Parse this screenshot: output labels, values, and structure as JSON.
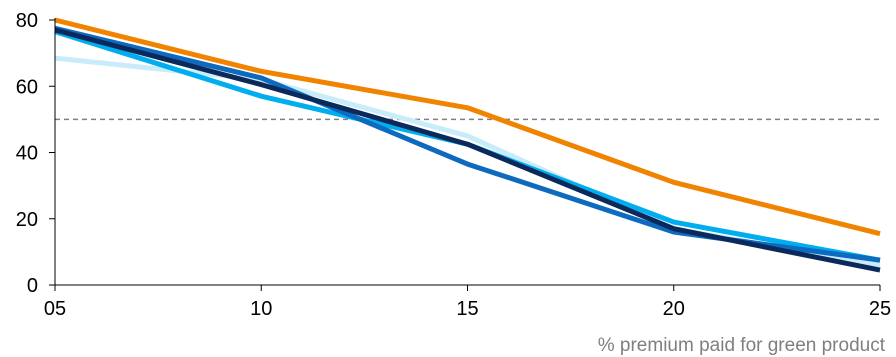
{
  "chart_data": {
    "type": "line",
    "x": [
      5,
      10,
      15,
      20,
      25
    ],
    "x_tick_labels": [
      "05",
      "10",
      "15",
      "20",
      "25"
    ],
    "y_ticks": [
      0,
      20,
      40,
      60,
      80
    ],
    "xlim": [
      5,
      25
    ],
    "ylim": [
      0,
      80
    ],
    "xlabel": "% premium paid for green product",
    "ylabel": "",
    "grid": false,
    "reference_line": {
      "y": 50,
      "style": "dashed",
      "color": "#808080"
    },
    "series": [
      {
        "color": "#c9ecfb",
        "values": [
          68.5,
          62,
          45,
          17,
          6
        ]
      },
      {
        "color": "#00aeef",
        "values": [
          76.5,
          57,
          42.5,
          19,
          7.5
        ]
      },
      {
        "color": "#0d6abf",
        "values": [
          77.5,
          62.5,
          36.5,
          16,
          7.5
        ]
      },
      {
        "color": "#0b2a5b",
        "values": [
          77,
          60.5,
          42.5,
          17,
          4.5
        ]
      },
      {
        "color": "#f08400",
        "values": [
          80,
          64.5,
          53.5,
          31,
          15.5
        ]
      }
    ]
  }
}
